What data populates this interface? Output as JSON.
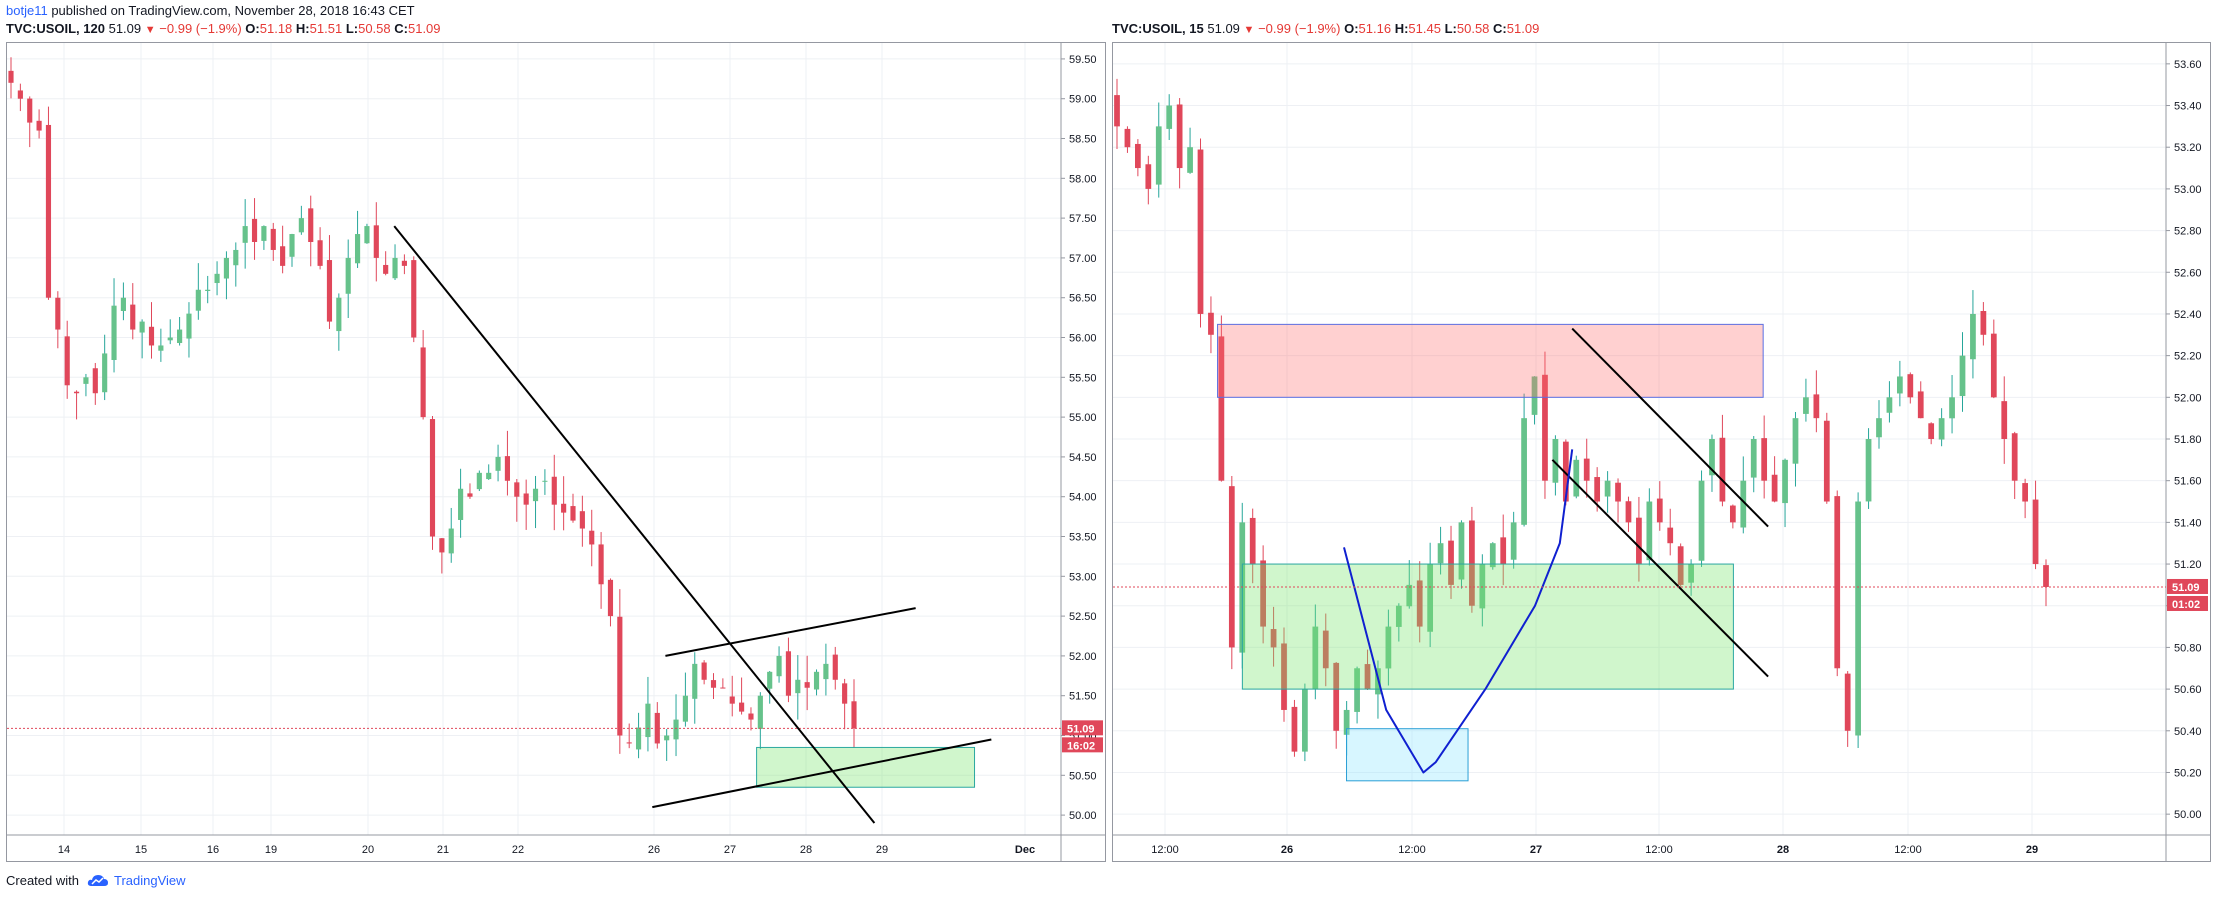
{
  "header": {
    "author": "botje11",
    "published": "published on TradingView.com, November 28, 2018 16:43 CET"
  },
  "panels": [
    {
      "symbol": "TVC:USOIL, 120",
      "last": "51.09",
      "change": "−0.99 (−1.9%)",
      "o_label": "O:",
      "o": "51.18",
      "h_label": "H:",
      "h": "51.51",
      "l_label": "L:",
      "l": "50.58",
      "c_label": "C:",
      "c": "51.09"
    },
    {
      "symbol": "TVC:USOIL, 15",
      "last": "51.09",
      "change": "−0.99 (−1.9%)",
      "o_label": "O:",
      "o": "51.16",
      "h_label": "H:",
      "h": "51.45",
      "l_label": "L:",
      "l": "50.58",
      "c_label": "C:",
      "c": "51.09"
    }
  ],
  "footer": {
    "created_with": "Created with",
    "brand": "TradingView"
  },
  "colors": {
    "up": "#26a69a",
    "up_fill": "#66c28b",
    "down": "#e0475a",
    "line": "#000000",
    "curve": "#1020d0",
    "price_tag": "#e0475a"
  },
  "chart_data": [
    {
      "type": "candlestick",
      "timeframe": "120",
      "x_ticks": [
        "14",
        "15",
        "16",
        "19",
        "20",
        "21",
        "22",
        "26",
        "27",
        "28",
        "29",
        "Dec"
      ],
      "y_ticks": [
        "59.50",
        "59.00",
        "58.50",
        "58.00",
        "57.50",
        "57.00",
        "56.50",
        "56.00",
        "55.50",
        "55.00",
        "54.50",
        "54.00",
        "53.50",
        "53.00",
        "52.50",
        "52.00",
        "51.50",
        "51.00",
        "50.50",
        "50.00"
      ],
      "ylim": [
        49.75,
        59.7
      ],
      "current_price": "51.09",
      "countdown": "16:02",
      "close_path": [
        59.2,
        59.0,
        58.7,
        58.6,
        56.5,
        56.1,
        55.4,
        55.3,
        55.5,
        55.3,
        55.8,
        56.4,
        56.5,
        56.1,
        56.2,
        55.9,
        55.9,
        56.0,
        56.1,
        56.3,
        56.6,
        56.6,
        56.8,
        57.0,
        57.1,
        57.4,
        57.2,
        57.4,
        57.1,
        56.9,
        57.3,
        57.5,
        57.2,
        56.9,
        56.2,
        56.5,
        57.0,
        57.3,
        57.4,
        57.0,
        56.8,
        57.0,
        56.9,
        56.0,
        55.0,
        53.5,
        53.3,
        53.6,
        54.1,
        54.0,
        54.3,
        54.3,
        54.5,
        54.2,
        54.0,
        53.9,
        54.1,
        54.2,
        53.9,
        53.8,
        53.7,
        53.6,
        53.4,
        52.9,
        52.5,
        51.0,
        50.9,
        51.1,
        51.4,
        50.9,
        51.0,
        51.2,
        51.5,
        51.9,
        51.7,
        51.6,
        51.6,
        51.4,
        51.3,
        51.2,
        51.5,
        51.8,
        52.0,
        51.5,
        51.7,
        51.6,
        51.8,
        51.9,
        51.7,
        51.4,
        51.09
      ],
      "annotations": {
        "descending_line": [
          [
            20.35,
            57.4
          ],
          [
            28.9,
            49.9
          ]
        ],
        "upper_channel_line": [
          [
            26.15,
            52.0
          ],
          [
            29.4,
            52.6
          ]
        ],
        "lower_channel_line": [
          [
            25.95,
            50.1
          ],
          [
            30.3,
            50.95
          ]
        ],
        "support_box": {
          "x": [
            27.35,
            30.1
          ],
          "y": [
            50.35,
            50.85
          ]
        }
      }
    },
    {
      "type": "candlestick",
      "timeframe": "15",
      "x_ticks": [
        "12:00",
        "26",
        "12:00",
        "27",
        "12:00",
        "28",
        "12:00",
        "29"
      ],
      "y_ticks": [
        "53.60",
        "53.40",
        "53.20",
        "53.00",
        "52.80",
        "52.60",
        "52.40",
        "52.20",
        "52.00",
        "51.80",
        "51.60",
        "51.40",
        "51.20",
        "51.00",
        "50.80",
        "50.60",
        "50.40",
        "50.20",
        "50.00"
      ],
      "ylim": [
        49.9,
        53.7
      ],
      "current_price": "51.09",
      "countdown": "01:02",
      "close_path": [
        53.3,
        53.2,
        53.1,
        53.0,
        53.3,
        53.4,
        53.1,
        53.2,
        52.4,
        52.3,
        51.6,
        50.8,
        51.4,
        51.2,
        50.9,
        50.8,
        50.5,
        50.3,
        50.6,
        50.9,
        50.7,
        50.4,
        50.5,
        50.7,
        50.6,
        50.7,
        50.9,
        51.0,
        51.1,
        50.9,
        51.2,
        51.3,
        51.1,
        51.4,
        51.0,
        51.2,
        51.3,
        51.2,
        51.4,
        51.9,
        52.1,
        51.6,
        51.8,
        51.5,
        51.7,
        51.6,
        51.5,
        51.6,
        51.5,
        51.4,
        51.2,
        51.5,
        51.4,
        51.3,
        51.1,
        51.2,
        51.6,
        51.8,
        51.5,
        51.4,
        51.6,
        51.8,
        51.6,
        51.5,
        51.7,
        51.9,
        52.0,
        51.9,
        51.5,
        50.7,
        50.4,
        51.5,
        51.8,
        51.9,
        52.0,
        52.1,
        52.0,
        51.9,
        51.8,
        51.9,
        52.0,
        52.2,
        52.4,
        52.3,
        52.0,
        51.8,
        51.6,
        51.5,
        51.2,
        51.09
      ],
      "annotations": {
        "resistance_box": {
          "x": [
            -0.28,
            1.92
          ],
          "y": [
            52.0,
            52.35
          ]
        },
        "support_box": {
          "x": [
            -0.18,
            1.8
          ],
          "y": [
            50.6,
            51.2
          ]
        },
        "low_box": {
          "x": [
            0.24,
            0.73
          ],
          "y": [
            50.16,
            50.41
          ]
        },
        "upper_line": [
          [
            1.15,
            52.33
          ],
          [
            1.94,
            51.38
          ]
        ],
        "lower_line": [
          [
            1.07,
            51.7
          ],
          [
            1.94,
            50.66
          ]
        ],
        "curve": [
          [
            0.23,
            51.28
          ],
          [
            0.4,
            50.5
          ],
          [
            0.55,
            50.2
          ],
          [
            0.6,
            50.25
          ],
          [
            0.8,
            50.6
          ],
          [
            1.0,
            51.0
          ],
          [
            1.1,
            51.3
          ],
          [
            1.15,
            51.75
          ]
        ]
      }
    }
  ]
}
